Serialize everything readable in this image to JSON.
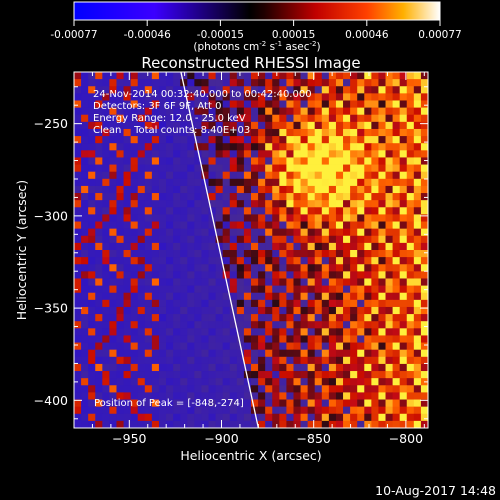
{
  "colorbar": {
    "ticks": [
      "-0.00077",
      "-0.00046",
      "-0.00015",
      "0.00015",
      "0.00046",
      "0.00077"
    ],
    "units_main": "(photons cm",
    "units_sup1": "-2",
    "units_mid1": " s",
    "units_sup2": "-1",
    "units_mid2": " asec",
    "units_sup3": "-2",
    "units_end": ")"
  },
  "chart_data": {
    "type": "heatmap",
    "title": "Reconstructed RHESSI Image",
    "xlabel": "Heliocentric X (arcsec)",
    "ylabel": "Heliocentric Y (arcsec)",
    "xlim": [
      -980,
      -788
    ],
    "ylim": [
      -415,
      -222
    ],
    "xticks": [
      -950,
      -900,
      -850,
      -800
    ],
    "yticks": [
      -250,
      -300,
      -350,
      -400
    ],
    "colorbar_range": [
      -0.00077,
      0.00077
    ],
    "limb_line": [
      [
        -922,
        -222
      ],
      [
        -880,
        -415
      ]
    ],
    "peak": [
      -848,
      -274
    ],
    "grid": false
  },
  "annotations": {
    "time_range": "24-Nov-2014 00:32:40.000 to 00:42:40.000",
    "detectors": "Detectors: 3F 6F 9F, Att 0",
    "energy": "Energy Range: 12.0 - 25.0 keV",
    "method": "Clean    Total counts: 8.40E+03",
    "peak_label": "Position of Peak = [-848,-274]"
  },
  "footer": {
    "timestamp": "10-Aug-2017 14:48"
  }
}
